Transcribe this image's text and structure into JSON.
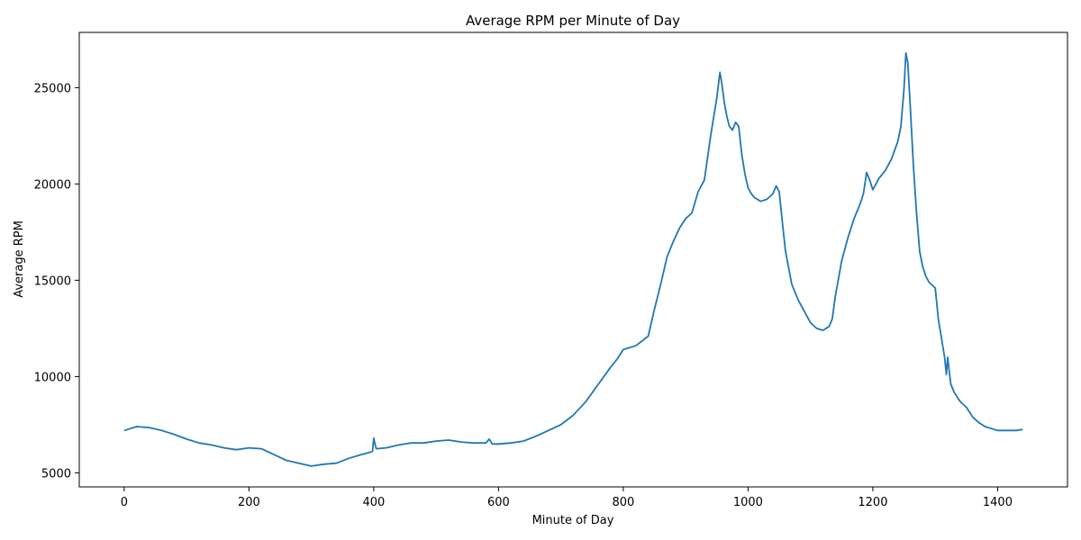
{
  "chart_data": {
    "type": "line",
    "title": "Average RPM per Minute of Day",
    "xlabel": "Minute of Day",
    "ylabel": "Average RPM",
    "xlim": [
      -72,
      1512
    ],
    "ylim": [
      4270,
      27870
    ],
    "xticks": [
      0,
      200,
      400,
      600,
      800,
      1000,
      1200,
      1400
    ],
    "yticks": [
      5000,
      10000,
      15000,
      20000,
      25000
    ],
    "grid": false,
    "color": "#1f77b4",
    "series": [
      {
        "x": [
          0,
          10,
          20,
          40,
          60,
          80,
          100,
          120,
          140,
          160,
          180,
          200,
          220,
          240,
          260,
          280,
          300,
          320,
          340,
          360,
          380,
          398,
          400,
          402,
          404,
          420,
          440,
          460,
          480,
          500,
          520,
          540,
          560,
          580,
          585,
          590,
          600,
          620,
          640,
          660,
          680,
          700,
          720,
          740,
          760,
          780,
          790,
          800,
          820,
          840,
          850,
          860,
          870,
          880,
          890,
          900,
          910,
          920,
          930,
          940,
          950,
          955,
          958,
          962,
          966,
          970,
          975,
          980,
          985,
          990,
          995,
          1000,
          1005,
          1010,
          1020,
          1030,
          1040,
          1045,
          1050,
          1055,
          1060,
          1070,
          1080,
          1090,
          1100,
          1110,
          1120,
          1130,
          1135,
          1140,
          1150,
          1160,
          1170,
          1180,
          1185,
          1190,
          1195,
          1200,
          1205,
          1210,
          1220,
          1230,
          1240,
          1245,
          1250,
          1253,
          1256,
          1260,
          1265,
          1270,
          1275,
          1280,
          1285,
          1290,
          1300,
          1305,
          1310,
          1315,
          1318,
          1320,
          1322,
          1325,
          1330,
          1340,
          1350,
          1360,
          1370,
          1380,
          1390,
          1400,
          1410,
          1420,
          1430,
          1440
        ],
        "y": [
          7200,
          7300,
          7400,
          7350,
          7200,
          7000,
          6750,
          6550,
          6450,
          6300,
          6200,
          6300,
          6250,
          5950,
          5650,
          5500,
          5350,
          5450,
          5500,
          5750,
          5950,
          6100,
          6800,
          6500,
          6250,
          6300,
          6450,
          6550,
          6550,
          6650,
          6700,
          6600,
          6550,
          6550,
          6750,
          6500,
          6500,
          6550,
          6650,
          6900,
          7200,
          7500,
          8000,
          8700,
          9600,
          10500,
          10900,
          11400,
          11600,
          12100,
          13500,
          14800,
          16200,
          17000,
          17700,
          18200,
          18500,
          19600,
          20200,
          22500,
          24500,
          25800,
          25200,
          24200,
          23500,
          23000,
          22800,
          23200,
          23000,
          21500,
          20500,
          19800,
          19500,
          19300,
          19100,
          19200,
          19500,
          19900,
          19600,
          18000,
          16500,
          14800,
          14000,
          13400,
          12800,
          12500,
          12400,
          12600,
          13000,
          14200,
          16000,
          17200,
          18200,
          19000,
          19500,
          20600,
          20200,
          19700,
          20000,
          20300,
          20700,
          21300,
          22200,
          23000,
          25000,
          26800,
          26300,
          24000,
          21000,
          18500,
          16500,
          15700,
          15200,
          14900,
          14600,
          13000,
          12000,
          11000,
          10100,
          11000,
          10400,
          9600,
          9200,
          8700,
          8400,
          7900,
          7600,
          7400,
          7300,
          7200,
          7200,
          7200,
          7200,
          7250
        ]
      }
    ]
  }
}
